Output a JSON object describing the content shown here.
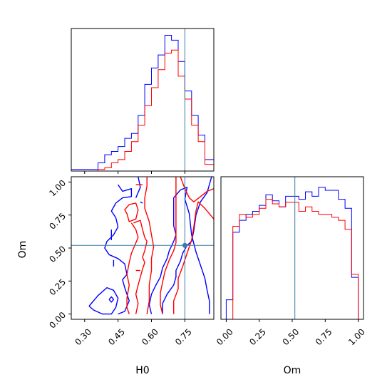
{
  "chart_data": [
    {
      "panel": "H0 marginal",
      "type": "step-histogram",
      "x_range": [
        0.24,
        0.88
      ],
      "x_ticks": [
        0.3,
        0.45,
        0.6,
        0.75
      ],
      "truth_x": 0.75,
      "series": [
        {
          "color": "#0000ff",
          "edges": [
            0.24,
            0.36,
            0.39,
            0.42,
            0.45,
            0.48,
            0.51,
            0.54,
            0.57,
            0.6,
            0.63,
            0.66,
            0.69,
            0.72,
            0.75,
            0.78,
            0.81,
            0.84,
            0.88
          ],
          "density": [
            0.01,
            0.05,
            0.1,
            0.12,
            0.15,
            0.2,
            0.23,
            0.34,
            0.53,
            0.63,
            0.71,
            0.83,
            0.8,
            0.67,
            0.49,
            0.34,
            0.22,
            0.07
          ]
        },
        {
          "color": "#ff0000",
          "edges": [
            0.24,
            0.36,
            0.39,
            0.42,
            0.45,
            0.48,
            0.51,
            0.54,
            0.57,
            0.6,
            0.63,
            0.66,
            0.69,
            0.72,
            0.75,
            0.78,
            0.81,
            0.84,
            0.88
          ],
          "density": [
            0.0,
            0.01,
            0.02,
            0.05,
            0.07,
            0.12,
            0.18,
            0.28,
            0.4,
            0.51,
            0.62,
            0.72,
            0.74,
            0.58,
            0.44,
            0.28,
            0.18,
            0.04
          ]
        }
      ]
    },
    {
      "panel": "Om marginal",
      "type": "step-histogram",
      "x_range": [
        -0.04,
        1.04
      ],
      "x_ticks": [
        0.0,
        0.25,
        0.5,
        0.75,
        1.0
      ],
      "truth_x": 0.52,
      "series": [
        {
          "color": "#0000ff",
          "edges": [
            0.0,
            0.05,
            0.1,
            0.15,
            0.2,
            0.25,
            0.3,
            0.35,
            0.4,
            0.45,
            0.5,
            0.55,
            0.6,
            0.65,
            0.7,
            0.75,
            0.8,
            0.85,
            0.9,
            0.95,
            1.0
          ],
          "density": [
            0.13,
            0.58,
            0.66,
            0.7,
            0.72,
            0.76,
            0.83,
            0.79,
            0.75,
            0.82,
            0.82,
            0.8,
            0.85,
            0.82,
            0.88,
            0.86,
            0.86,
            0.8,
            0.74,
            0.28
          ]
        },
        {
          "color": "#ff0000",
          "edges": [
            0.0,
            0.05,
            0.1,
            0.15,
            0.2,
            0.25,
            0.3,
            0.35,
            0.4,
            0.45,
            0.5,
            0.55,
            0.6,
            0.65,
            0.7,
            0.75,
            0.8,
            0.85,
            0.9,
            0.95,
            1.0
          ],
          "density": [
            0.0,
            0.62,
            0.7,
            0.68,
            0.7,
            0.74,
            0.8,
            0.77,
            0.75,
            0.78,
            0.78,
            0.72,
            0.75,
            0.72,
            0.7,
            0.7,
            0.68,
            0.66,
            0.6,
            0.3
          ]
        }
      ]
    },
    {
      "panel": "H0-Om joint",
      "type": "contour",
      "x_range": [
        0.24,
        0.88
      ],
      "y_range": [
        -0.04,
        1.04
      ],
      "x_ticks": [
        0.3,
        0.45,
        0.6,
        0.75
      ],
      "y_ticks": [
        0.0,
        0.25,
        0.5,
        0.75,
        1.0
      ],
      "truth": [
        0.75,
        0.52
      ],
      "xlabel": "H0",
      "ylabel": "Om",
      "series": [
        {
          "color": "#0000ff",
          "contours": [
            [
              [
                0.32,
                0.06
              ],
              [
                0.34,
                0.03
              ],
              [
                0.38,
                0.0
              ],
              [
                0.42,
                0.0
              ],
              [
                0.44,
                0.05
              ],
              [
                0.45,
                0.12
              ],
              [
                0.43,
                0.18
              ],
              [
                0.4,
                0.2
              ],
              [
                0.36,
                0.14
              ],
              [
                0.32,
                0.06
              ]
            ],
            [
              [
                0.41,
                0.11
              ],
              [
                0.42,
                0.09
              ],
              [
                0.43,
                0.11
              ],
              [
                0.42,
                0.13
              ],
              [
                0.41,
                0.11
              ]
            ],
            [
              [
                0.45,
                0.98
              ],
              [
                0.47,
                0.93
              ],
              [
                0.51,
                0.95
              ],
              [
                0.51,
                0.89
              ],
              [
                0.47,
                0.88
              ],
              [
                0.44,
                0.84
              ],
              [
                0.42,
                0.78
              ],
              [
                0.44,
                0.73
              ],
              [
                0.45,
                0.66
              ],
              [
                0.43,
                0.6
              ],
              [
                0.4,
                0.55
              ],
              [
                0.39,
                0.5
              ],
              [
                0.41,
                0.45
              ],
              [
                0.45,
                0.42
              ],
              [
                0.48,
                0.38
              ],
              [
                0.49,
                0.3
              ],
              [
                0.47,
                0.26
              ],
              [
                0.48,
                0.2
              ],
              [
                0.5,
                0.1
              ],
              [
                0.48,
                0.02
              ],
              [
                0.45,
                0.0
              ]
            ],
            [
              [
                0.43,
                0.36
              ],
              [
                0.43,
                0.41
              ]
            ],
            [
              [
                0.42,
                0.56
              ],
              [
                0.42,
                0.64
              ]
            ],
            [
              [
                0.54,
                1.04
              ],
              [
                0.55,
                0.96
              ],
              [
                0.53,
                0.88
              ]
            ],
            [
              [
                0.6,
                0.0
              ],
              [
                0.59,
                0.07
              ],
              [
                0.6,
                0.15
              ],
              [
                0.62,
                0.22
              ],
              [
                0.64,
                0.28
              ],
              [
                0.65,
                0.35
              ],
              [
                0.67,
                0.42
              ],
              [
                0.68,
                0.48
              ],
              [
                0.7,
                0.55
              ],
              [
                0.71,
                0.6
              ],
              [
                0.7,
                0.67
              ],
              [
                0.7,
                0.77
              ],
              [
                0.7,
                0.88
              ],
              [
                0.73,
                0.94
              ],
              [
                0.76,
                0.96
              ],
              [
                0.75,
                0.87
              ],
              [
                0.77,
                0.76
              ],
              [
                0.78,
                0.6
              ],
              [
                0.8,
                0.47
              ],
              [
                0.82,
                0.37
              ],
              [
                0.84,
                0.27
              ],
              [
                0.85,
                0.18
              ],
              [
                0.86,
                0.1
              ],
              [
                0.86,
                0.0
              ]
            ],
            [
              [
                0.65,
                0.0
              ],
              [
                0.65,
                0.08
              ],
              [
                0.67,
                0.15
              ],
              [
                0.7,
                0.22
              ],
              [
                0.71,
                0.28
              ],
              [
                0.71,
                0.33
              ],
              [
                0.73,
                0.4
              ],
              [
                0.74,
                0.46
              ],
              [
                0.76,
                0.52
              ],
              [
                0.78,
                0.55
              ],
              [
                0.79,
                0.63
              ],
              [
                0.8,
                0.75
              ],
              [
                0.82,
                0.85
              ],
              [
                0.85,
                0.92
              ],
              [
                0.87,
                1.04
              ]
            ],
            [
              [
                0.55,
                0.85
              ],
              [
                0.56,
                0.84
              ]
            ]
          ]
        },
        {
          "color": "#ff0000",
          "contours": [
            [
              [
                0.5,
                0.83
              ],
              [
                0.53,
                0.84
              ],
              [
                0.54,
                0.79
              ],
              [
                0.53,
                0.72
              ],
              [
                0.5,
                0.7
              ],
              [
                0.49,
                0.76
              ],
              [
                0.48,
                0.79
              ],
              [
                0.5,
                0.83
              ]
            ],
            [
              [
                0.52,
                0.69
              ],
              [
                0.55,
                0.71
              ],
              [
                0.56,
                0.64
              ],
              [
                0.57,
                0.58
              ],
              [
                0.58,
                0.55
              ],
              [
                0.57,
                0.48
              ],
              [
                0.56,
                0.43
              ],
              [
                0.57,
                0.39
              ],
              [
                0.56,
                0.34
              ],
              [
                0.55,
                0.28
              ],
              [
                0.54,
                0.22
              ],
              [
                0.53,
                0.15
              ],
              [
                0.54,
                0.08
              ],
              [
                0.53,
                0.0
              ]
            ],
            [
              [
                0.5,
                0.0
              ],
              [
                0.49,
                0.05
              ],
              [
                0.49,
                0.12
              ],
              [
                0.5,
                0.22
              ],
              [
                0.49,
                0.3
              ],
              [
                0.5,
                0.39
              ],
              [
                0.51,
                0.46
              ],
              [
                0.52,
                0.5
              ],
              [
                0.54,
                0.58
              ],
              [
                0.53,
                0.64
              ],
              [
                0.51,
                0.69
              ]
            ],
            [
              [
                0.58,
                1.04
              ],
              [
                0.58,
                0.97
              ],
              [
                0.57,
                0.88
              ],
              [
                0.57,
                0.8
              ],
              [
                0.59,
                0.7
              ],
              [
                0.6,
                0.6
              ],
              [
                0.61,
                0.51
              ],
              [
                0.6,
                0.42
              ],
              [
                0.6,
                0.33
              ],
              [
                0.59,
                0.22
              ],
              [
                0.59,
                0.1
              ],
              [
                0.58,
                0.0
              ]
            ],
            [
              [
                0.65,
                0.0
              ],
              [
                0.64,
                0.07
              ],
              [
                0.64,
                0.16
              ],
              [
                0.65,
                0.24
              ],
              [
                0.66,
                0.32
              ],
              [
                0.68,
                0.41
              ],
              [
                0.7,
                0.48
              ],
              [
                0.71,
                0.54
              ],
              [
                0.71,
                0.62
              ],
              [
                0.71,
                0.72
              ],
              [
                0.71,
                0.85
              ],
              [
                0.71,
                1.04
              ]
            ],
            [
              [
                0.7,
                0.0
              ],
              [
                0.7,
                0.1
              ],
              [
                0.72,
                0.19
              ],
              [
                0.72,
                0.27
              ],
              [
                0.74,
                0.36
              ],
              [
                0.76,
                0.46
              ],
              [
                0.78,
                0.56
              ],
              [
                0.79,
                0.66
              ],
              [
                0.8,
                0.78
              ],
              [
                0.81,
                0.85
              ],
              [
                0.84,
                0.8
              ],
              [
                0.88,
                0.72
              ]
            ],
            [
              [
                0.73,
                1.04
              ],
              [
                0.75,
                0.95
              ],
              [
                0.77,
                0.88
              ],
              [
                0.79,
                0.85
              ],
              [
                0.82,
                0.89
              ],
              [
                0.85,
                0.93
              ],
              [
                0.88,
                0.95
              ]
            ],
            [
              [
                0.53,
                0.98
              ],
              [
                0.56,
                0.98
              ]
            ],
            [
              [
                0.53,
                0.33
              ],
              [
                0.55,
                0.33
              ]
            ]
          ]
        }
      ]
    }
  ]
}
